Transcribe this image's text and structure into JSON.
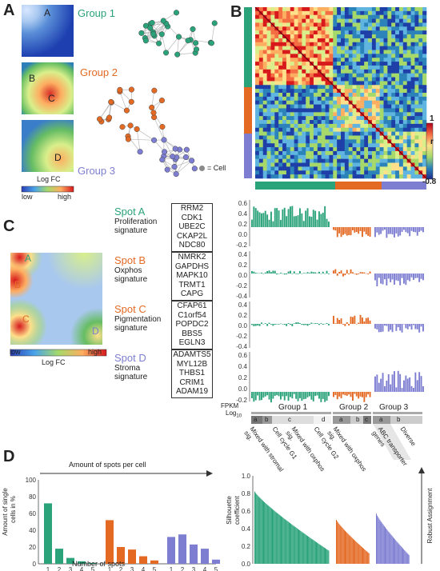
{
  "colors": {
    "group1": "#2aa27a",
    "group2": "#e46a24",
    "group3": "#7d7ed1",
    "spotA": "#2aa27a",
    "spotB": "#e46a24",
    "spotC": "#e46a24",
    "spotD": "#7d7ed1"
  },
  "panelA": {
    "letter": "A",
    "spots": [
      "A",
      "B",
      "C",
      "D"
    ],
    "group_labels": [
      "Group 1",
      "Group 2",
      "Group 3"
    ],
    "scale_title": "Log FC",
    "scale_low": "low",
    "scale_high": "high",
    "legend_cell": "= Cell"
  },
  "panelB": {
    "letter": "B",
    "colorbar_top": "1",
    "colorbar_label": "r",
    "colorbar_bottom": "-0.8"
  },
  "panelC": {
    "letter": "C",
    "scale_title": "Log FC",
    "scale_low": "low",
    "scale_high": "high",
    "map_spots": [
      "A",
      "B",
      "C",
      "D"
    ],
    "signatures": [
      {
        "title": "Spot A",
        "sig1": "Proliferation",
        "sig2": "signature",
        "genes": [
          "RRM2",
          "CDK1",
          "UBE2C",
          "CKAP2L",
          "NDC80"
        ]
      },
      {
        "title": "Spot B",
        "sig1": "Oxphos",
        "sig2": "signature",
        "genes": [
          "NMRK2",
          "GAPDHS",
          "MAPK10",
          "TRMT1",
          "CAPG"
        ]
      },
      {
        "title": "Spot C",
        "sig1": "Pigmentation",
        "sig2": "signature",
        "genes": [
          "CFAP61",
          "C1orf54",
          "POPDC2",
          "BBS5",
          "EGLN3"
        ]
      },
      {
        "title": "Spot D",
        "sig1": "Stroma",
        "sig2": "signature",
        "genes": [
          "ADAMTS5",
          "MYL12B",
          "THBS1",
          "CRIM1",
          "ADAM19"
        ]
      }
    ],
    "y_ticks": [
      "0.6",
      "0.4",
      "0.2",
      "0.0",
      "-0.2"
    ],
    "fpkm": "FPKM",
    "log": "Log",
    "log_sub": "10",
    "group_labels": [
      "Group 1",
      "Group 2",
      "Group 3"
    ],
    "subclusters": [
      "a",
      "b",
      "c",
      "d",
      "a",
      "b",
      "c",
      "a",
      "b"
    ],
    "annotations": [
      "Mixed with stromal sig.",
      "Cell cycle G1",
      "Mixed with oxphos sig.",
      "Cell cycle G2",
      "Mixed with oxphos sig.",
      "ABC transporter genes",
      "Diverse"
    ]
  },
  "panelD": {
    "letter": "D",
    "arrow_label": "Amount of spots per cell",
    "ylabel1": "Amount of single",
    "ylabel2": "cells in %",
    "xlabel": "Number of spots",
    "sil_ylabel1": "Silhouette",
    "sil_ylabel2": "coefficient",
    "robust": "Robust Assignment",
    "left_y_ticks": [
      "100",
      "80",
      "60",
      "40",
      "20",
      "0"
    ],
    "right_y_ticks": [
      "1.0",
      "0.8",
      "0.6",
      "0.4",
      "0.2",
      "0.0"
    ]
  },
  "chart_data": [
    {
      "type": "bar",
      "ylabel": "Amount of single cells in %",
      "xlabel": "Number of spots",
      "ylim": [
        0,
        100
      ],
      "categories": [
        "1",
        "2",
        "3",
        "4",
        "5"
      ],
      "series": [
        {
          "name": "Group 1",
          "values": [
            72,
            18,
            7,
            3,
            1
          ]
        },
        {
          "name": "Group 2",
          "values": [
            52,
            20,
            17,
            9,
            4
          ]
        },
        {
          "name": "Group 3",
          "values": [
            32,
            35,
            23,
            18,
            5
          ]
        }
      ]
    },
    {
      "type": "bar",
      "ylabel": "Silhouette coefficient",
      "ylim": [
        0,
        1.0
      ],
      "series": [
        {
          "name": "Group 1",
          "values": [
            0.82,
            0.15
          ]
        },
        {
          "name": "Group 2",
          "values": [
            0.5,
            0.12
          ]
        },
        {
          "name": "Group 3",
          "values": [
            0.57,
            0.1
          ]
        }
      ]
    }
  ]
}
